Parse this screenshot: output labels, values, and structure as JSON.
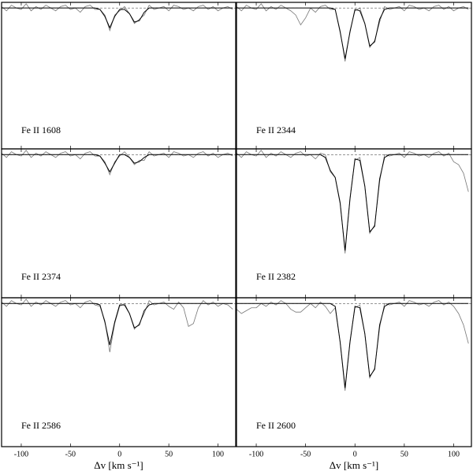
{
  "chart_data": [
    {
      "type": "line",
      "label": "Fe II 1608",
      "x": [
        -120,
        -115,
        -110,
        -105,
        -100,
        -95,
        -90,
        -85,
        -80,
        -75,
        -70,
        -65,
        -60,
        -55,
        -50,
        -45,
        -40,
        -35,
        -30,
        -25,
        -20,
        -15,
        -10,
        -5,
        0,
        5,
        10,
        15,
        20,
        25,
        30,
        35,
        40,
        45,
        50,
        55,
        60,
        65,
        70,
        75,
        80,
        85,
        90,
        95,
        100,
        105,
        110,
        115
      ],
      "xlim": [
        -120,
        118
      ],
      "ylim": [
        0,
        1.04
      ],
      "xticks": [
        -100,
        -50,
        0,
        50,
        100
      ],
      "continuum": 1,
      "series": [
        {
          "color": "#777777",
          "values": [
            1.01,
            0.98,
            1.02,
            1,
            0.99,
            1.03,
            0.98,
            1.01,
            0.99,
            1.02,
            1,
            0.98,
            1.01,
            1.02,
            0.99,
            1,
            0.97,
            1.01,
            1.02,
            0.99,
            0.99,
            0.95,
            0.84,
            0.95,
            0.98,
            1.01,
            0.96,
            0.89,
            0.92,
            0.95,
            1.02,
            0.99,
            1,
            1.01,
            0.98,
            1.02,
            1.01,
            0.99,
            1,
            0.98,
            1.01,
            1.02,
            0.99,
            1.01,
            0.98,
            1,
            1.01,
            0.99
          ]
        },
        {
          "color": "#000000",
          "values": [
            1,
            1,
            1,
            1,
            1,
            1,
            1,
            1,
            1,
            1,
            1,
            1,
            1,
            1,
            1,
            1,
            1,
            1,
            1,
            1,
            0.99,
            0.94,
            0.86,
            0.94,
            0.99,
            0.99,
            0.96,
            0.9,
            0.91,
            0.97,
            1,
            1,
            1,
            1,
            1,
            1,
            1,
            1,
            1,
            1,
            1,
            1,
            1,
            1,
            1,
            1,
            1,
            1
          ]
        }
      ]
    },
    {
      "type": "line",
      "label": "Fe II 2344",
      "x": [
        -120,
        -115,
        -110,
        -105,
        -100,
        -95,
        -90,
        -85,
        -80,
        -75,
        -70,
        -65,
        -60,
        -55,
        -50,
        -45,
        -40,
        -35,
        -30,
        -25,
        -20,
        -15,
        -10,
        -5,
        0,
        5,
        10,
        15,
        20,
        25,
        30,
        35,
        40,
        45,
        50,
        55,
        60,
        65,
        70,
        75,
        80,
        85,
        90,
        95,
        100,
        105,
        110,
        115
      ],
      "xlim": [
        -120,
        118
      ],
      "ylim": [
        0,
        1.04
      ],
      "xticks": [
        -100,
        -50,
        0,
        50,
        100
      ],
      "continuum": 1,
      "series": [
        {
          "color": "#777777",
          "values": [
            1.01,
            0.98,
            1.02,
            1,
            0.99,
            1.03,
            0.98,
            1.01,
            0.99,
            1.02,
            1,
            0.98,
            0.95,
            0.88,
            0.93,
            1,
            0.97,
            1.01,
            1.02,
            0.99,
            0.99,
            0.84,
            0.62,
            0.84,
            0.98,
            1,
            0.89,
            0.72,
            0.77,
            0.9,
            1.01,
            0.99,
            1,
            1.01,
            0.98,
            1.02,
            1.01,
            0.99,
            1,
            0.98,
            1.01,
            1.02,
            0.99,
            1.01,
            0.98,
            1,
            1.01,
            0.99
          ]
        },
        {
          "color": "#000000",
          "values": [
            1,
            1,
            1,
            1,
            1,
            1,
            1,
            1,
            1,
            1,
            1,
            1,
            1,
            1,
            1,
            1,
            1,
            1,
            1,
            1,
            0.99,
            0.83,
            0.64,
            0.83,
            0.99,
            0.98,
            0.89,
            0.73,
            0.76,
            0.92,
            0.99,
            1,
            1,
            1,
            1,
            1,
            1,
            1,
            1,
            1,
            1,
            1,
            1,
            1,
            1,
            1,
            1,
            1
          ]
        }
      ]
    },
    {
      "type": "line",
      "label": "Fe II 2374",
      "x": [
        -120,
        -115,
        -110,
        -105,
        -100,
        -95,
        -90,
        -85,
        -80,
        -75,
        -70,
        -65,
        -60,
        -55,
        -50,
        -45,
        -40,
        -35,
        -30,
        -25,
        -20,
        -15,
        -10,
        -5,
        0,
        5,
        10,
        15,
        20,
        25,
        30,
        35,
        40,
        45,
        50,
        55,
        60,
        65,
        70,
        75,
        80,
        85,
        90,
        95,
        100,
        105,
        110,
        115
      ],
      "xlim": [
        -120,
        118
      ],
      "ylim": [
        0,
        1.04
      ],
      "xticks": [
        -100,
        -50,
        0,
        50,
        100
      ],
      "continuum": 1,
      "series": [
        {
          "color": "#777777",
          "values": [
            1.01,
            0.98,
            1.02,
            1,
            0.99,
            1.03,
            0.98,
            1.01,
            0.99,
            1.02,
            1,
            0.98,
            1.01,
            1.02,
            0.99,
            1,
            0.97,
            1.01,
            1.02,
            0.99,
            0.99,
            0.95,
            0.86,
            0.95,
            0.99,
            1.02,
            0.98,
            0.93,
            0.96,
            0.96,
            1.02,
            0.99,
            1,
            1.01,
            0.98,
            1.02,
            1.01,
            0.99,
            1,
            0.98,
            1.01,
            1.02,
            0.99,
            1.01,
            0.98,
            1,
            1.01,
            0.99
          ]
        },
        {
          "color": "#000000",
          "values": [
            1,
            1,
            1,
            1,
            1,
            1,
            1,
            1,
            1,
            1,
            1,
            1,
            1,
            1,
            1,
            1,
            1,
            1,
            1,
            1,
            0.99,
            0.94,
            0.88,
            0.94,
            1,
            1,
            0.98,
            0.94,
            0.95,
            0.98,
            1,
            1,
            1,
            1,
            1,
            1,
            1,
            1,
            1,
            1,
            1,
            1,
            1,
            1,
            1,
            1,
            1,
            1
          ]
        }
      ]
    },
    {
      "type": "line",
      "label": "Fe II 2382",
      "x": [
        -120,
        -115,
        -110,
        -105,
        -100,
        -95,
        -90,
        -85,
        -80,
        -75,
        -70,
        -65,
        -60,
        -55,
        -50,
        -45,
        -40,
        -35,
        -30,
        -25,
        -20,
        -15,
        -10,
        -5,
        0,
        5,
        10,
        15,
        20,
        25,
        30,
        35,
        40,
        45,
        50,
        55,
        60,
        65,
        70,
        75,
        80,
        85,
        90,
        95,
        100,
        105,
        110,
        115
      ],
      "xlim": [
        -120,
        118
      ],
      "ylim": [
        0,
        1.04
      ],
      "xticks": [
        -100,
        -50,
        0,
        50,
        100
      ],
      "continuum": 1,
      "series": [
        {
          "color": "#777777",
          "values": [
            1.01,
            0.98,
            1.02,
            1,
            0.99,
            1.03,
            0.98,
            1.01,
            0.99,
            1.02,
            1,
            0.98,
            1.01,
            1.02,
            0.99,
            1,
            0.97,
            1.01,
            1,
            0.88,
            0.84,
            0.67,
            0.31,
            0.7,
            0.96,
            0.98,
            0.78,
            0.45,
            0.51,
            0.81,
            1,
            0.99,
            1,
            1.01,
            0.98,
            1.02,
            1.01,
            0.99,
            1,
            0.98,
            1.01,
            1.02,
            0.99,
            1.01,
            0.95,
            0.93,
            0.87,
            0.74
          ]
        },
        {
          "color": "#000000",
          "values": [
            1,
            1,
            1,
            1,
            1,
            1,
            1,
            1,
            1,
            1,
            1,
            1,
            1,
            1,
            1,
            1,
            1,
            1,
            0.98,
            0.89,
            0.84,
            0.66,
            0.33,
            0.69,
            0.97,
            0.96,
            0.78,
            0.46,
            0.5,
            0.83,
            0.98,
            1,
            1,
            1,
            1,
            1,
            1,
            1,
            1,
            1,
            1,
            1,
            1,
            1,
            1,
            1,
            1,
            1
          ]
        }
      ]
    },
    {
      "type": "line",
      "label": "Fe II 2586",
      "xlabel": "Δv [km s⁻¹]",
      "x": [
        -120,
        -115,
        -110,
        -105,
        -100,
        -95,
        -90,
        -85,
        -80,
        -75,
        -70,
        -65,
        -60,
        -55,
        -50,
        -45,
        -40,
        -35,
        -30,
        -25,
        -20,
        -15,
        -10,
        -5,
        0,
        5,
        10,
        15,
        20,
        25,
        30,
        35,
        40,
        45,
        50,
        55,
        60,
        65,
        70,
        75,
        80,
        85,
        90,
        95,
        100,
        105,
        110,
        115
      ],
      "xlim": [
        -120,
        118
      ],
      "ylim": [
        0,
        1.04
      ],
      "xticks": [
        -100,
        -50,
        0,
        50,
        100
      ],
      "continuum": 1,
      "series": [
        {
          "color": "#777777",
          "values": [
            1.01,
            0.98,
            1.02,
            1,
            0.99,
            1.03,
            0.98,
            1.01,
            0.99,
            1.02,
            1,
            0.98,
            1.01,
            1.02,
            0.99,
            1,
            0.97,
            1.01,
            1.02,
            0.99,
            0.98,
            0.88,
            0.66,
            0.86,
            0.98,
            1,
            0.93,
            0.82,
            0.86,
            0.93,
            1.02,
            0.99,
            1,
            1.01,
            0.98,
            0.96,
            1.01,
            0.97,
            0.84,
            0.86,
            0.97,
            1.02,
            0.99,
            1.01,
            0.98,
            1,
            0.99,
            0.96
          ]
        },
        {
          "color": "#000000",
          "values": [
            1,
            1,
            1,
            1,
            1,
            1,
            1,
            1,
            1,
            1,
            1,
            1,
            1,
            1,
            1,
            1,
            1,
            1,
            1,
            1,
            0.99,
            0.87,
            0.71,
            0.87,
            0.99,
            0.99,
            0.93,
            0.83,
            0.85,
            0.95,
            0.99,
            1,
            1,
            1,
            1,
            1,
            1,
            1,
            1,
            1,
            1,
            1,
            1,
            1,
            1,
            1,
            1,
            1
          ]
        }
      ]
    },
    {
      "type": "line",
      "label": "Fe II 2600",
      "xlabel": "Δv [km s⁻¹]",
      "x": [
        -120,
        -115,
        -110,
        -105,
        -100,
        -95,
        -90,
        -85,
        -80,
        -75,
        -70,
        -65,
        -60,
        -55,
        -50,
        -45,
        -40,
        -35,
        -30,
        -25,
        -20,
        -15,
        -10,
        -5,
        0,
        5,
        10,
        15,
        20,
        25,
        30,
        35,
        40,
        45,
        50,
        55,
        60,
        65,
        70,
        75,
        80,
        85,
        90,
        95,
        100,
        105,
        110,
        115
      ],
      "xlim": [
        -120,
        118
      ],
      "ylim": [
        0,
        1.04
      ],
      "xticks": [
        -100,
        -50,
        0,
        50,
        100
      ],
      "continuum": 1,
      "series": [
        {
          "color": "#777777",
          "values": [
            0.96,
            0.93,
            0.95,
            0.97,
            0.97,
            1,
            0.98,
            1.01,
            0.99,
            1.02,
            1,
            0.96,
            0.94,
            0.94,
            0.97,
            1,
            0.97,
            1.01,
            0.98,
            0.93,
            0.97,
            0.73,
            0.39,
            0.74,
            0.97,
            0.99,
            0.79,
            0.48,
            0.55,
            0.83,
            1,
            0.99,
            1,
            1.01,
            0.98,
            1.02,
            1.01,
            0.99,
            1,
            0.98,
            1.01,
            1.02,
            0.99,
            1.01,
            0.98,
            0.93,
            0.85,
            0.72
          ]
        },
        {
          "color": "#000000",
          "values": [
            1,
            1,
            1,
            1,
            1,
            1,
            1,
            1,
            1,
            1,
            1,
            1,
            1,
            1,
            1,
            1,
            1,
            1,
            1,
            1,
            0.98,
            0.73,
            0.41,
            0.73,
            0.98,
            0.97,
            0.79,
            0.49,
            0.54,
            0.85,
            0.98,
            1,
            1,
            1,
            1,
            1,
            1,
            1,
            1,
            1,
            1,
            1,
            1,
            1,
            1,
            1,
            1,
            1
          ]
        }
      ]
    }
  ]
}
